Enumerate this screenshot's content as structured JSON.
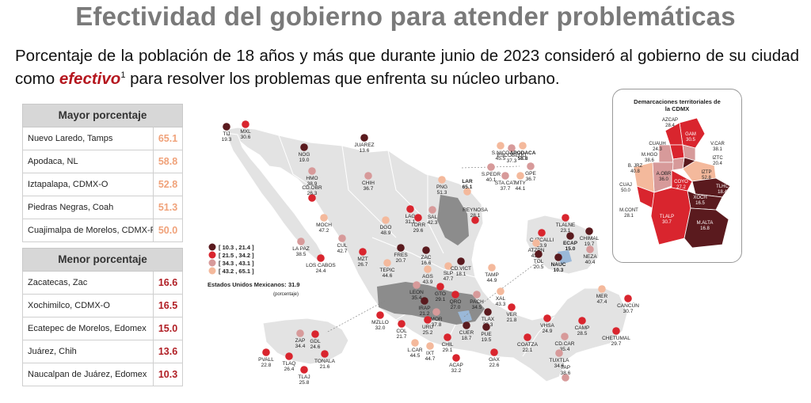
{
  "title": "Efectividad del gobierno para atender problemáticas",
  "subtitle": {
    "before": "Porcentaje de la población de 18 años y más que durante junio de 2023 consideró al gobierno de su ciudad como ",
    "highlight": "efectivo",
    "footnote": "1",
    "after": " para resolver los problemas que enfrenta su núcleo urbano."
  },
  "top_table": {
    "header": "Mayor porcentaje",
    "rows": [
      {
        "name": "Nuevo Laredo, Tamps",
        "value": "65.1"
      },
      {
        "name": "Apodaca, NL",
        "value": "58.8"
      },
      {
        "name": "Iztapalapa, CDMX-O",
        "value": "52.8"
      },
      {
        "name": "Piedras Negras, Coah",
        "value": "51.3"
      },
      {
        "name": "Cuajimalpa de Morelos, CDMX-P",
        "value": "50.0"
      }
    ]
  },
  "bottom_table": {
    "header": "Menor porcentaje",
    "rows": [
      {
        "name": "Zacatecas, Zac",
        "value": "16.6"
      },
      {
        "name": "Xochimilco, CDMX-O",
        "value": "16.5"
      },
      {
        "name": "Ecatepec de Morelos, Edomex",
        "value": "15.0"
      },
      {
        "name": "Juárez, Chih",
        "value": "13.6"
      },
      {
        "name": "Naucalpan de Juárez, Edomex",
        "value": "10.3"
      }
    ]
  },
  "legend": {
    "items": [
      "[ 10.3 , 21.4 ]",
      "[ 21.5 , 34.2 ]",
      "[ 34.3 , 43.1 ]",
      "[ 43.2 , 65.1 ]"
    ],
    "colors": [
      "#5a1a1e",
      "#d9252e",
      "#d79a9a",
      "#f4b99c"
    ],
    "national_label": "Estados Unidos Mexicanos:",
    "national_value": "31.9",
    "unit_note": "(porcentaje)"
  },
  "cities": [
    {
      "name": "TIJ",
      "value": "19.3",
      "cls": 0
    },
    {
      "name": "MXL",
      "value": "30.6",
      "cls": 1
    },
    {
      "name": "NOG",
      "value": "19.0",
      "cls": 0
    },
    {
      "name": "JUAREZ",
      "value": "13.6",
      "cls": 0
    },
    {
      "name": "HMO",
      "value": "38.9",
      "cls": 2
    },
    {
      "name": "CHIH",
      "value": "36.7",
      "cls": 2
    },
    {
      "name": "CD.OBR",
      "value": "26.3",
      "cls": 1
    },
    {
      "name": "MOCH",
      "value": "47.2",
      "cls": 3
    },
    {
      "name": "CUL",
      "value": "42.7",
      "cls": 2
    },
    {
      "name": "LA PAZ",
      "value": "38.5",
      "cls": 2
    },
    {
      "name": "LOS CABOS",
      "value": "24.4",
      "cls": 1
    },
    {
      "name": "MZT",
      "value": "26.7",
      "cls": 1
    },
    {
      "name": "DGO",
      "value": "48.9",
      "cls": 3
    },
    {
      "name": "LAG",
      "value": "31.1",
      "cls": 1
    },
    {
      "name": "TORR",
      "value": "29.6",
      "cls": 1
    },
    {
      "name": "SAL",
      "value": "42.3",
      "cls": 2
    },
    {
      "name": "PNG",
      "value": "51.3",
      "cls": 3
    },
    {
      "name": "LAR",
      "value": "65.1",
      "cls": 3
    },
    {
      "name": "REYNOSA",
      "value": "28.1",
      "cls": 1
    },
    {
      "name": "ESCOBEDO",
      "value": "37.3",
      "cls": 2
    },
    {
      "name": "S.NICO",
      "value": "45.5",
      "cls": 3
    },
    {
      "name": "APODACA",
      "value": "58.8",
      "cls": 3
    },
    {
      "name": "S.PEDR",
      "value": "40.1",
      "cls": 2
    },
    {
      "name": "GPE",
      "value": "36.7",
      "cls": 2
    },
    {
      "name": "STA.CAT",
      "value": "37.7",
      "cls": 2
    },
    {
      "name": "MTY",
      "value": "44.1",
      "cls": 3
    },
    {
      "name": "FRES",
      "value": "20.7",
      "cls": 0
    },
    {
      "name": "ZAC",
      "value": "16.6",
      "cls": 0
    },
    {
      "name": "TEPIC",
      "value": "44.6",
      "cls": 3
    },
    {
      "name": "AGS",
      "value": "43.9",
      "cls": 3
    },
    {
      "name": "SLP",
      "value": "47.7",
      "cls": 3
    },
    {
      "name": "CD.VICT",
      "value": "18.1",
      "cls": 0
    },
    {
      "name": "TAMP",
      "value": "44.9",
      "cls": 3
    },
    {
      "name": "LEON",
      "value": "35.4",
      "cls": 2
    },
    {
      "name": "GTO",
      "value": "29.1",
      "cls": 1
    },
    {
      "name": "IRAP",
      "value": "21.2",
      "cls": 0
    },
    {
      "name": "QRO",
      "value": "27.0",
      "cls": 1
    },
    {
      "name": "PACH",
      "value": "34.5",
      "cls": 2
    },
    {
      "name": "XAL",
      "value": "43.3",
      "cls": 3
    },
    {
      "name": "MOR",
      "value": "37.8",
      "cls": 2
    },
    {
      "name": "TLAX",
      "value": "20.3",
      "cls": 0
    },
    {
      "name": "VER",
      "value": "21.8",
      "cls": 1
    },
    {
      "name": "MZLLO",
      "value": "32.0",
      "cls": 1
    },
    {
      "name": "COL",
      "value": "21.7",
      "cls": 1
    },
    {
      "name": "URU",
      "value": "25.2",
      "cls": 1
    },
    {
      "name": "L.CAR",
      "value": "44.5",
      "cls": 3
    },
    {
      "name": "IXT",
      "value": "44.7",
      "cls": 3
    },
    {
      "name": "CHIL",
      "value": "29.1",
      "cls": 1
    },
    {
      "name": "CUER",
      "value": "18.7",
      "cls": 0
    },
    {
      "name": "PUE",
      "value": "19.5",
      "cls": 0
    },
    {
      "name": "ACAP",
      "value": "32.2",
      "cls": 1
    },
    {
      "name": "OAX",
      "value": "22.6",
      "cls": 1
    },
    {
      "name": "COATZA",
      "value": "22.1",
      "cls": 1
    },
    {
      "name": "VHSA",
      "value": "24.9",
      "cls": 1
    },
    {
      "name": "CAMP",
      "value": "28.5",
      "cls": 1
    },
    {
      "name": "CD.CAR",
      "value": "35.4",
      "cls": 2
    },
    {
      "name": "MER",
      "value": "47.4",
      "cls": 3
    },
    {
      "name": "CANCÚN",
      "value": "30.7",
      "cls": 1
    },
    {
      "name": "CHETUMAL",
      "value": "29.7",
      "cls": 1
    },
    {
      "name": "TUXTLA",
      "value": "34.6",
      "cls": 2
    },
    {
      "name": "TAP",
      "value": "38.6",
      "cls": 2
    },
    {
      "name": "ZAP",
      "value": "34.4",
      "cls": 2
    },
    {
      "name": "GDL",
      "value": "24.6",
      "cls": 1
    },
    {
      "name": "PVALL",
      "value": "22.8",
      "cls": 1
    },
    {
      "name": "TLAQ",
      "value": "26.4",
      "cls": 1
    },
    {
      "name": "TONALA",
      "value": "21.6",
      "cls": 1
    },
    {
      "name": "TLAJ",
      "value": "25.8",
      "cls": 1
    },
    {
      "name": "TLALNE",
      "value": "23.1",
      "cls": 1
    },
    {
      "name": "C.IZCALLI",
      "value": "23.9",
      "cls": 1
    },
    {
      "name": "ATZPN",
      "value": "43.6",
      "cls": 3
    },
    {
      "name": "ECAP",
      "value": "15.0",
      "cls": 0
    },
    {
      "name": "CHIMAL",
      "value": "19.7",
      "cls": 0
    },
    {
      "name": "NEZA",
      "value": "40.4",
      "cls": 2
    },
    {
      "name": "TOL",
      "value": "20.5",
      "cls": 0
    },
    {
      "name": "NAUC",
      "value": "10.3",
      "cls": 0
    }
  ],
  "cdmx": {
    "title_line1": "Demarcaciones territoriales de",
    "title_line2": "la CDMX",
    "districts": [
      {
        "name": "AZCAP",
        "value": "28.4"
      },
      {
        "name": "GAM",
        "value": "30.5"
      },
      {
        "name": "CUAUH",
        "value": "24.3"
      },
      {
        "name": "V.CAR",
        "value": "38.1"
      },
      {
        "name": "M.HGO",
        "value": "38.6"
      },
      {
        "name": "IZTC",
        "value": "20.4"
      },
      {
        "name": "B. JRZ",
        "value": "40.8"
      },
      {
        "name": "A.OBR",
        "value": "36.0"
      },
      {
        "name": "IZTP",
        "value": "52.8"
      },
      {
        "name": "CUAJ",
        "value": "50.0"
      },
      {
        "name": "COYO",
        "value": "27.2"
      },
      {
        "name": "TLHC",
        "value": "18.4"
      },
      {
        "name": "XOCH",
        "value": "16.5"
      },
      {
        "name": "M.CONT",
        "value": "28.1"
      },
      {
        "name": "TLALP",
        "value": "30.7"
      },
      {
        "name": "M.ALTA",
        "value": "16.8"
      }
    ]
  }
}
